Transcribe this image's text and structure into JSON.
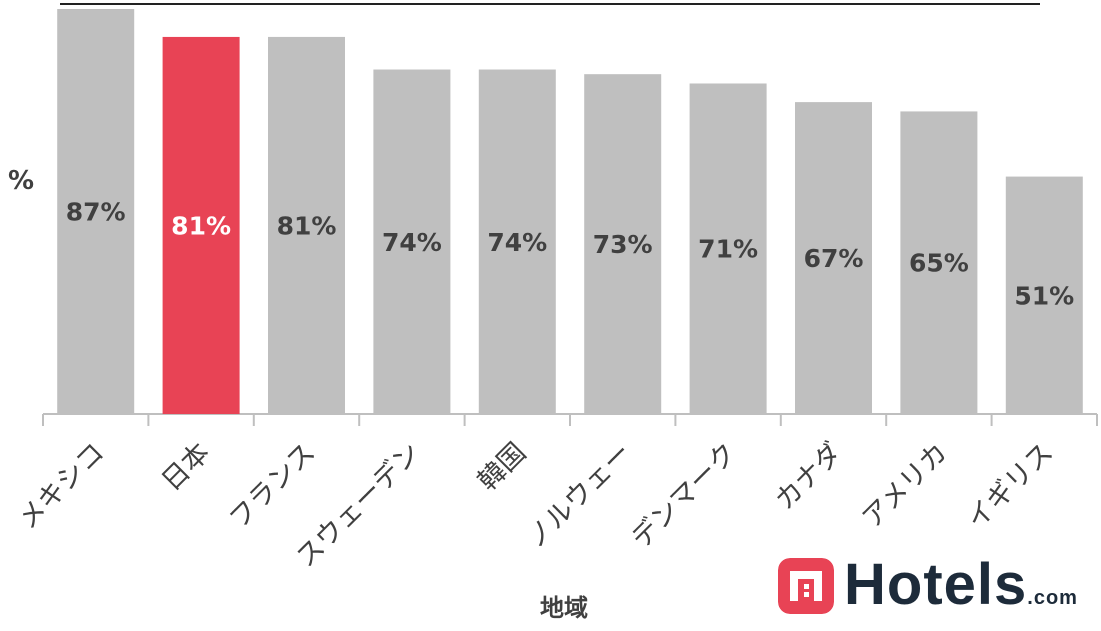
{
  "chart_data": {
    "type": "bar",
    "title": "",
    "ylabel": "%",
    "xlabel": "地域",
    "categories": [
      "メキシコ",
      "日本",
      "フランス",
      "スウェーデン",
      "韓国",
      "ノルウェー",
      "デンマーク",
      "カナダ",
      "アメリカ",
      "イギリス"
    ],
    "values": [
      87,
      81,
      81,
      74,
      74,
      73,
      71,
      67,
      65,
      51
    ],
    "data_labels": [
      "87%",
      "81%",
      "81%",
      "74%",
      "74%",
      "73%",
      "71%",
      "67%",
      "65%",
      "51%"
    ],
    "highlight_index": 1,
    "colors": {
      "default": "#bfbfbf",
      "highlight": "#e84355",
      "label_default": "#404040",
      "label_highlight": "#ffffff",
      "axis": "#bfbfbf"
    },
    "ylim": [
      0,
      87
    ],
    "grid": false,
    "legend": "none"
  },
  "logo": {
    "name": "Hotels",
    "suffix": ".com",
    "icon": "hotels-logo-icon",
    "icon_color": "#e84355"
  }
}
